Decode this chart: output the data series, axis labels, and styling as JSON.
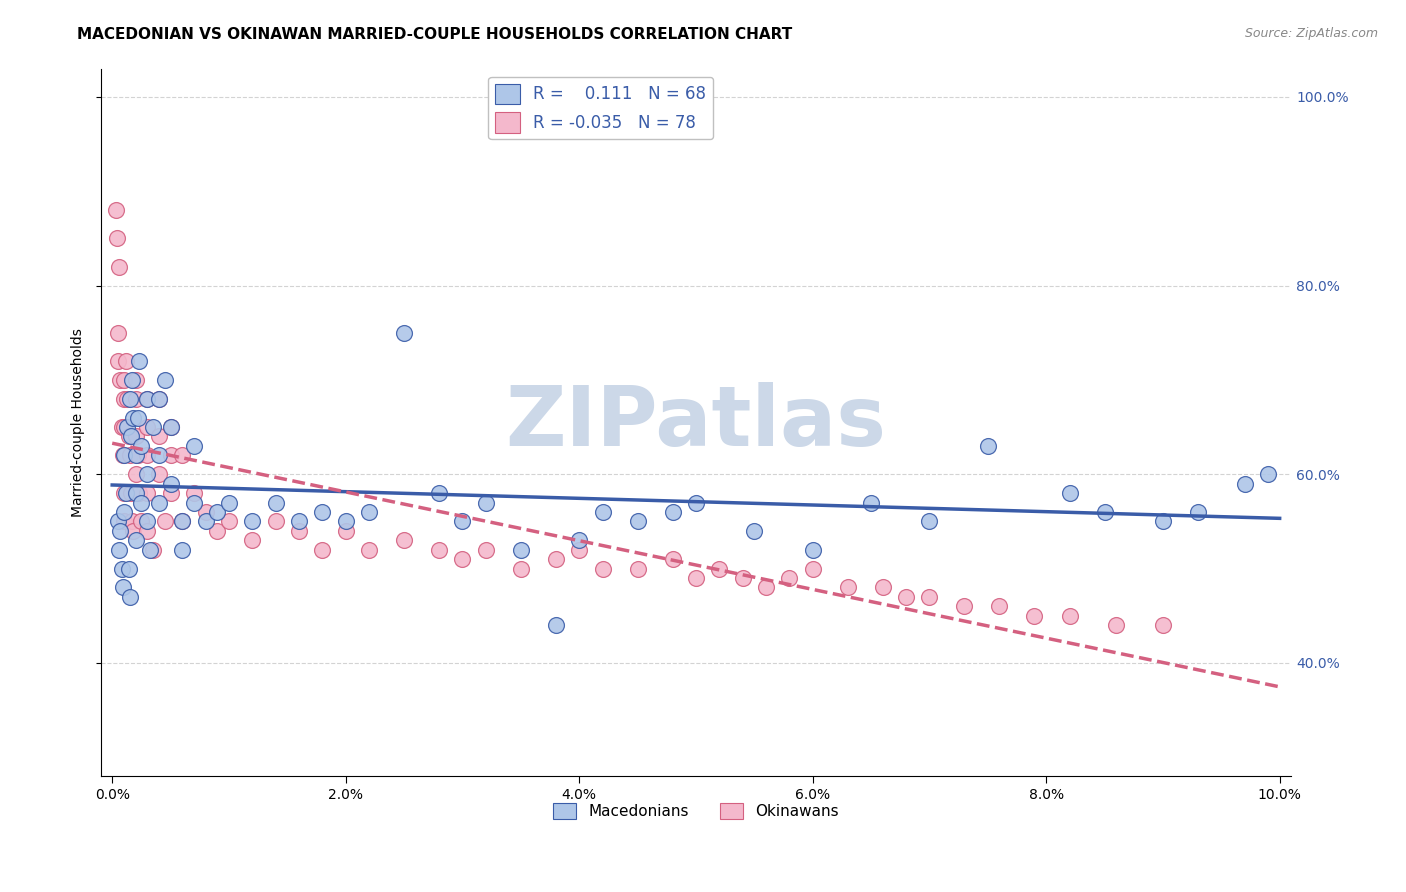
{
  "title": "MACEDONIAN VS OKINAWAN MARRIED-COUPLE HOUSEHOLDS CORRELATION CHART",
  "source": "Source: ZipAtlas.com",
  "ylabel": "Married-couple Households",
  "watermark": "ZIPatlas",
  "blue_color": "#aec6e8",
  "pink_color": "#f4b8cc",
  "line_blue": "#3a5ca8",
  "line_pink": "#d46080",
  "xlim": [
    -0.001,
    0.101
  ],
  "ylim": [
    0.28,
    1.03
  ],
  "xticks": [
    0.0,
    0.02,
    0.04,
    0.06,
    0.08,
    0.1
  ],
  "yticks": [
    0.4,
    0.6,
    0.8,
    1.0
  ],
  "macedonian_x": [
    0.0005,
    0.0006,
    0.0007,
    0.0008,
    0.0009,
    0.001,
    0.001,
    0.0012,
    0.0013,
    0.0014,
    0.0015,
    0.0015,
    0.0016,
    0.0017,
    0.0018,
    0.002,
    0.002,
    0.002,
    0.0022,
    0.0023,
    0.0025,
    0.0025,
    0.003,
    0.003,
    0.003,
    0.0032,
    0.0035,
    0.004,
    0.004,
    0.004,
    0.0045,
    0.005,
    0.005,
    0.006,
    0.006,
    0.007,
    0.007,
    0.008,
    0.009,
    0.01,
    0.012,
    0.014,
    0.016,
    0.018,
    0.02,
    0.022,
    0.025,
    0.028,
    0.03,
    0.032,
    0.035,
    0.038,
    0.04,
    0.042,
    0.045,
    0.048,
    0.05,
    0.055,
    0.06,
    0.065,
    0.07,
    0.075,
    0.082,
    0.085,
    0.09,
    0.093,
    0.097,
    0.099
  ],
  "macedonian_y": [
    0.55,
    0.52,
    0.54,
    0.5,
    0.48,
    0.56,
    0.62,
    0.58,
    0.65,
    0.5,
    0.68,
    0.47,
    0.64,
    0.7,
    0.66,
    0.62,
    0.58,
    0.53,
    0.66,
    0.72,
    0.63,
    0.57,
    0.68,
    0.6,
    0.55,
    0.52,
    0.65,
    0.68,
    0.62,
    0.57,
    0.7,
    0.65,
    0.59,
    0.55,
    0.52,
    0.63,
    0.57,
    0.55,
    0.56,
    0.57,
    0.55,
    0.57,
    0.55,
    0.56,
    0.55,
    0.56,
    0.75,
    0.58,
    0.55,
    0.57,
    0.52,
    0.44,
    0.53,
    0.56,
    0.55,
    0.56,
    0.57,
    0.54,
    0.52,
    0.57,
    0.55,
    0.63,
    0.58,
    0.56,
    0.55,
    0.56,
    0.59,
    0.6
  ],
  "okinawan_x": [
    0.0003,
    0.0004,
    0.0005,
    0.0005,
    0.0006,
    0.0007,
    0.0008,
    0.0009,
    0.001,
    0.001,
    0.001,
    0.001,
    0.001,
    0.0012,
    0.0013,
    0.0014,
    0.0015,
    0.0016,
    0.0017,
    0.0018,
    0.002,
    0.002,
    0.002,
    0.002,
    0.0022,
    0.0023,
    0.0025,
    0.003,
    0.003,
    0.003,
    0.003,
    0.003,
    0.0035,
    0.004,
    0.004,
    0.004,
    0.0045,
    0.005,
    0.005,
    0.005,
    0.006,
    0.006,
    0.007,
    0.008,
    0.009,
    0.01,
    0.012,
    0.014,
    0.016,
    0.018,
    0.02,
    0.022,
    0.025,
    0.028,
    0.03,
    0.032,
    0.035,
    0.038,
    0.04,
    0.042,
    0.045,
    0.048,
    0.05,
    0.052,
    0.054,
    0.056,
    0.058,
    0.06,
    0.063,
    0.066,
    0.068,
    0.07,
    0.073,
    0.076,
    0.079,
    0.082,
    0.086,
    0.09
  ],
  "okinawan_y": [
    0.88,
    0.85,
    0.75,
    0.72,
    0.82,
    0.7,
    0.65,
    0.62,
    0.7,
    0.68,
    0.65,
    0.58,
    0.55,
    0.72,
    0.68,
    0.64,
    0.62,
    0.58,
    0.55,
    0.54,
    0.7,
    0.68,
    0.64,
    0.6,
    0.62,
    0.58,
    0.55,
    0.68,
    0.65,
    0.62,
    0.58,
    0.54,
    0.52,
    0.68,
    0.64,
    0.6,
    0.55,
    0.65,
    0.62,
    0.58,
    0.62,
    0.55,
    0.58,
    0.56,
    0.54,
    0.55,
    0.53,
    0.55,
    0.54,
    0.52,
    0.54,
    0.52,
    0.53,
    0.52,
    0.51,
    0.52,
    0.5,
    0.51,
    0.52,
    0.5,
    0.5,
    0.51,
    0.49,
    0.5,
    0.49,
    0.48,
    0.49,
    0.5,
    0.48,
    0.48,
    0.47,
    0.47,
    0.46,
    0.46,
    0.45,
    0.45,
    0.44,
    0.44
  ],
  "background_color": "#ffffff",
  "grid_color": "#c8c8c8",
  "title_fontsize": 11,
  "axis_label_fontsize": 10,
  "tick_fontsize": 10,
  "source_fontsize": 9,
  "watermark_color": "#ccd8e8",
  "watermark_fontsize": 60
}
